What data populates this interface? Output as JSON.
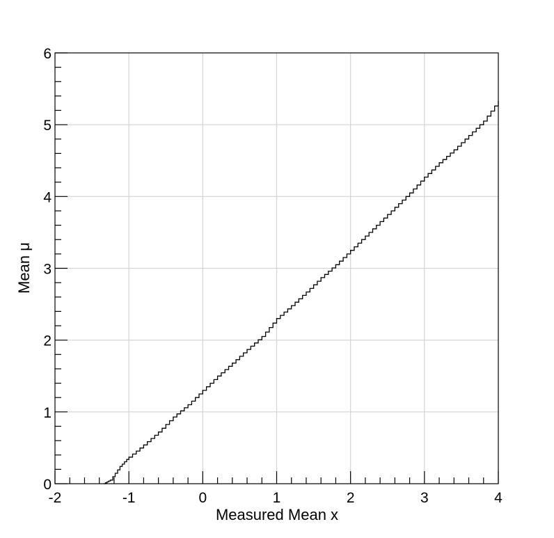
{
  "chart_data": {
    "type": "line",
    "title": "",
    "xlabel": "Measured Mean x",
    "ylabel": "Mean  μ",
    "xlim": [
      -2,
      4
    ],
    "ylim": [
      0,
      6
    ],
    "x_ticks": [
      "-2",
      "-1",
      "0",
      "1",
      "2",
      "3",
      "4"
    ],
    "y_ticks": [
      "0",
      "1",
      "2",
      "3",
      "4",
      "5",
      "6"
    ],
    "grid": true,
    "legend": "none",
    "colors": {
      "line": "#000000",
      "grid": "#d3d3d3",
      "axis": "#000000"
    },
    "series": [
      {
        "style": "staircase",
        "points": [
          {
            "x": -1.34,
            "y": 0.0
          },
          {
            "x": -1.25,
            "y": 0.05
          },
          {
            "x": -1.12,
            "y": 0.24
          },
          {
            "x": -1.0,
            "y": 0.37
          },
          {
            "x": -0.8,
            "y": 0.54
          },
          {
            "x": -0.6,
            "y": 0.72
          },
          {
            "x": -0.4,
            "y": 0.93
          },
          {
            "x": -0.2,
            "y": 1.1
          },
          {
            "x": 0.0,
            "y": 1.3
          },
          {
            "x": 0.2,
            "y": 1.5
          },
          {
            "x": 0.4,
            "y": 1.68
          },
          {
            "x": 0.6,
            "y": 1.87
          },
          {
            "x": 0.8,
            "y": 2.05
          },
          {
            "x": 1.0,
            "y": 2.3
          },
          {
            "x": 1.2,
            "y": 2.48
          },
          {
            "x": 1.4,
            "y": 2.67
          },
          {
            "x": 1.6,
            "y": 2.87
          },
          {
            "x": 1.8,
            "y": 3.05
          },
          {
            "x": 2.0,
            "y": 3.25
          },
          {
            "x": 2.2,
            "y": 3.45
          },
          {
            "x": 2.4,
            "y": 3.65
          },
          {
            "x": 2.6,
            "y": 3.85
          },
          {
            "x": 2.8,
            "y": 4.05
          },
          {
            "x": 3.0,
            "y": 4.27
          },
          {
            "x": 3.2,
            "y": 4.47
          },
          {
            "x": 3.4,
            "y": 4.65
          },
          {
            "x": 3.6,
            "y": 4.85
          },
          {
            "x": 3.8,
            "y": 5.05
          },
          {
            "x": 4.0,
            "y": 5.33
          }
        ]
      }
    ]
  }
}
